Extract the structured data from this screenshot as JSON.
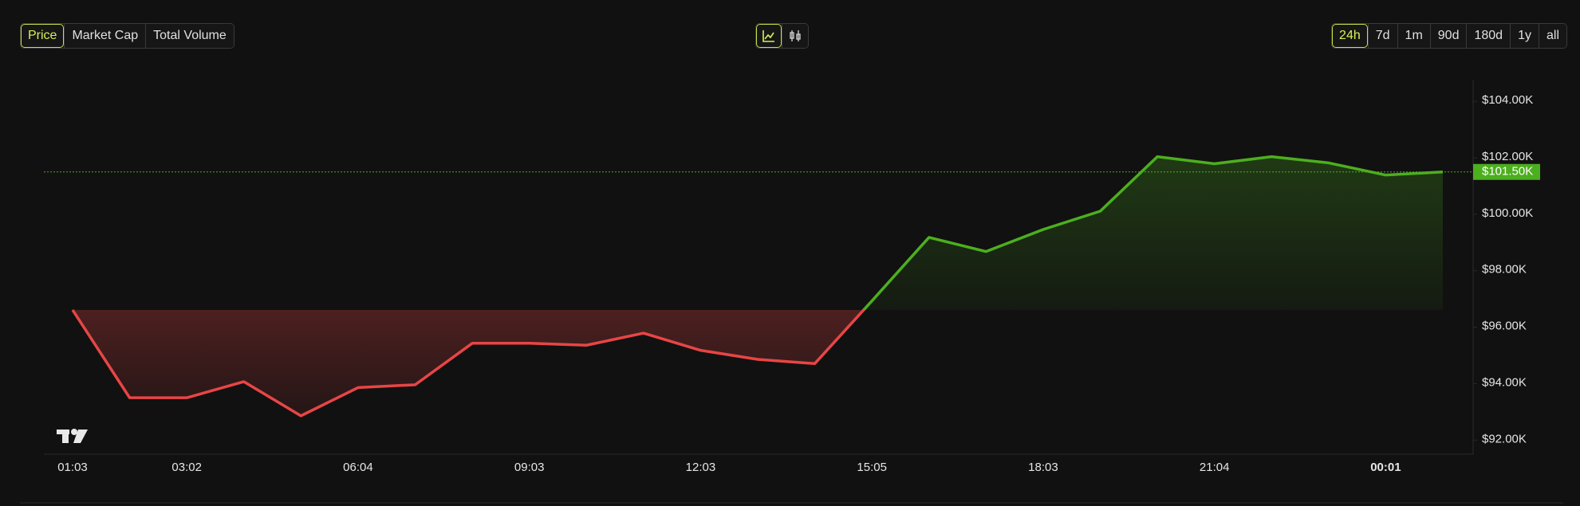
{
  "controls": {
    "metric": [
      "Price",
      "Market Cap",
      "Total Volume"
    ],
    "range": [
      "24h",
      "7d",
      "1m",
      "90d",
      "180d",
      "1y",
      "all"
    ]
  },
  "chart_data": {
    "type": "line",
    "categories": [
      "01:03",
      null,
      "03:02",
      null,
      null,
      "06:04",
      null,
      null,
      "09:03",
      null,
      null,
      "12:03",
      null,
      null,
      "15:05",
      null,
      null,
      "18:03",
      null,
      null,
      "21:04",
      null,
      null,
      "00:01",
      null
    ],
    "values": [
      96.61,
      93.5,
      93.5,
      94.07,
      92.86,
      93.86,
      93.96,
      95.43,
      95.43,
      95.36,
      95.79,
      95.18,
      94.86,
      94.71,
      96.93,
      99.18,
      98.68,
      99.46,
      100.11,
      102.04,
      101.79,
      102.04,
      101.82,
      101.39,
      101.5
    ],
    "up_color": "#4caf1e",
    "down_color": "#e84545",
    "ylim": [
      91.5,
      104.57
    ],
    "yticks": [
      {
        "value": 92,
        "label": "$92.00K"
      },
      {
        "value": 94,
        "label": "$94.00K"
      },
      {
        "value": 96,
        "label": "$96.00K"
      },
      {
        "value": 98,
        "label": "$98.00K"
      },
      {
        "value": 100,
        "label": "$100.00K"
      },
      {
        "value": 102,
        "label": "$102.00K"
      },
      {
        "value": 104,
        "label": "$104.00K"
      }
    ],
    "current_price": {
      "value": 101.5,
      "label": "$101.50K"
    }
  }
}
